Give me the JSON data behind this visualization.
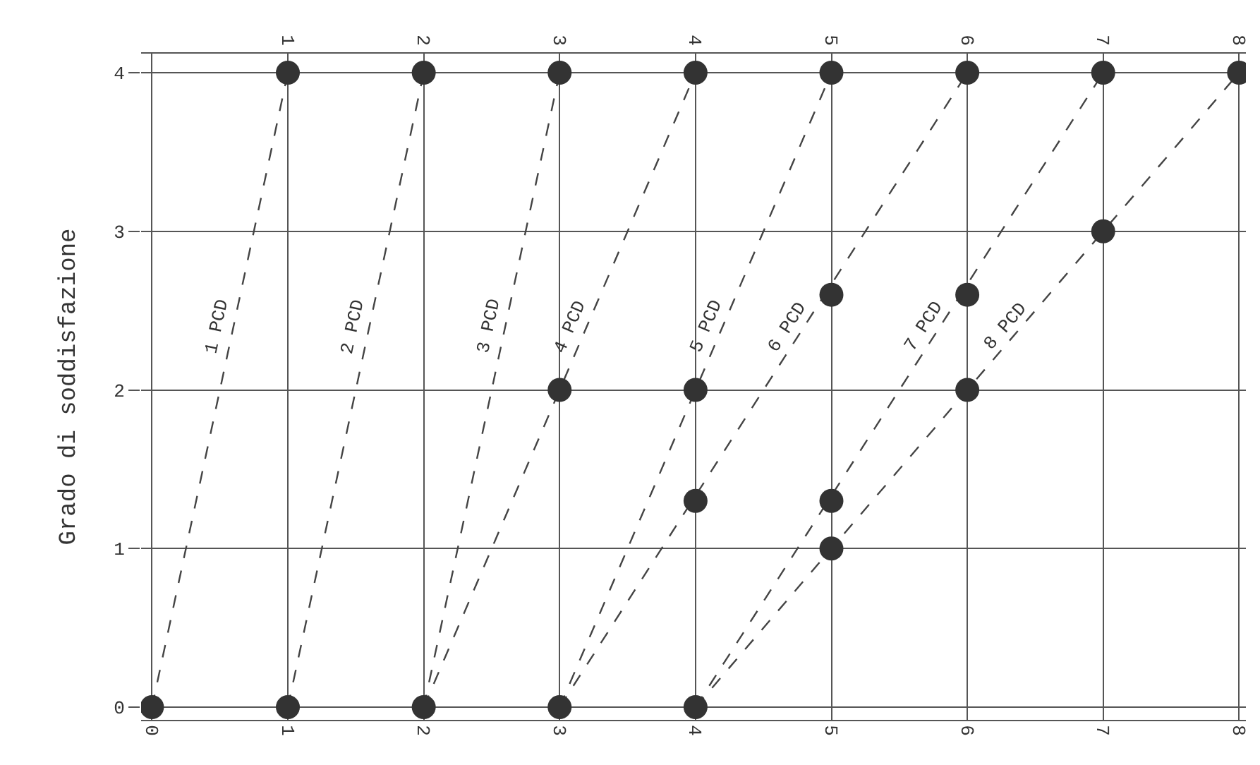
{
  "chart_data": {
    "type": "line",
    "ylabel": "Grado di soddisfazione",
    "xlim": [
      -0.08,
      8.05
    ],
    "xticks": [
      0,
      1,
      2,
      3,
      4,
      5,
      6,
      7,
      8
    ],
    "x2lim": [
      -0.08,
      8.05
    ],
    "x2ticks": [
      1,
      2,
      3,
      4,
      5,
      6,
      7,
      8
    ],
    "ylim": [
      -0.08,
      4.12
    ],
    "yticks": [
      0,
      1,
      2,
      3,
      4
    ],
    "grid": true,
    "legend": false,
    "series": [
      {
        "name": "1 PCD",
        "x": [
          0,
          1
        ],
        "values": [
          0,
          4
        ],
        "color": "#444444",
        "line_style": "dashed",
        "marker": "none"
      },
      {
        "name": "2 PCD",
        "x": [
          1,
          2
        ],
        "values": [
          0,
          4
        ],
        "color": "#444444",
        "line_style": "dashed",
        "marker": "none"
      },
      {
        "name": "3 PCD",
        "x": [
          2,
          3
        ],
        "values": [
          0,
          4
        ],
        "color": "#444444",
        "line_style": "dashed",
        "marker": "none"
      },
      {
        "name": "4 PCD",
        "x": [
          2,
          4
        ],
        "values": [
          0,
          4
        ],
        "color": "#444444",
        "line_style": "dashed",
        "marker": "none"
      },
      {
        "name": "5 PCD",
        "x": [
          3,
          5
        ],
        "values": [
          0,
          4
        ],
        "color": "#444444",
        "line_style": "dashed",
        "marker": "none"
      },
      {
        "name": "6 PCD",
        "x": [
          3,
          6
        ],
        "values": [
          0,
          4
        ],
        "color": "#444444",
        "line_style": "dashed",
        "marker": "none"
      },
      {
        "name": "7 PCD",
        "x": [
          4,
          7
        ],
        "values": [
          0,
          4
        ],
        "color": "#444444",
        "line_style": "dashed",
        "marker": "none"
      },
      {
        "name": "8 PCD",
        "x": [
          4,
          8
        ],
        "values": [
          0,
          4
        ],
        "color": "#444444",
        "line_style": "dashed",
        "marker": "none"
      },
      {
        "type": "scatter",
        "x": [
          0,
          1,
          2,
          3,
          4,
          1,
          2,
          3,
          4,
          5,
          6,
          7,
          8,
          3,
          4,
          4,
          5,
          5,
          5,
          6,
          6,
          7
        ],
        "values": [
          0,
          0,
          0,
          0,
          0,
          4,
          4,
          4,
          4,
          4,
          4,
          4,
          4,
          2,
          2,
          1.3,
          2.6,
          1.3,
          1,
          2.6,
          2,
          3
        ],
        "color": "#333333",
        "marker": "circle"
      }
    ]
  }
}
